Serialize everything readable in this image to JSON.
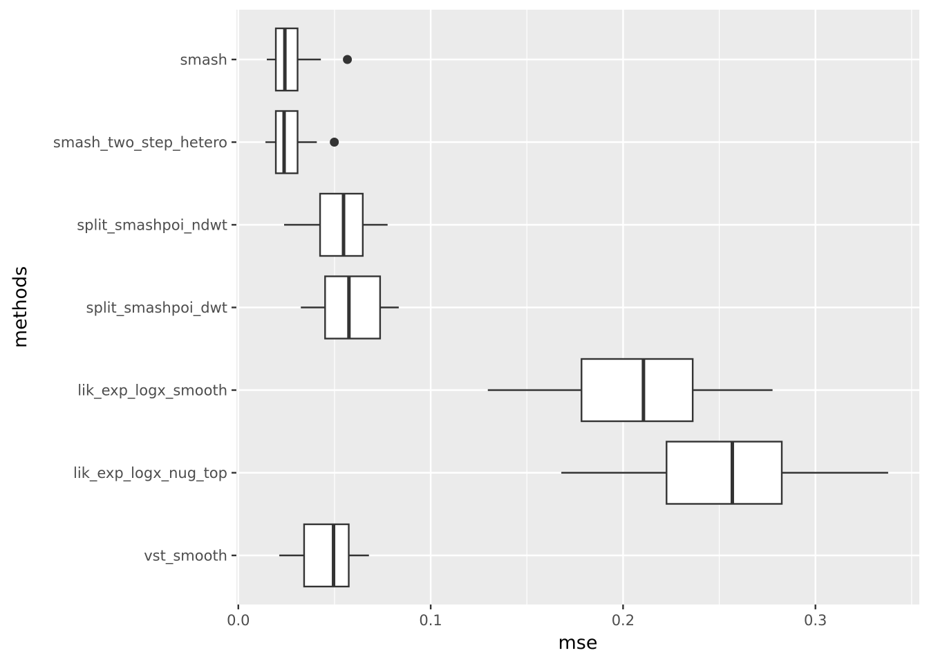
{
  "chart_data": {
    "type": "boxplot",
    "orientation": "horizontal",
    "xlabel": "mse",
    "ylabel": "methods",
    "xlim": [
      -0.001,
      0.354
    ],
    "x_ticks": [
      0.0,
      0.1,
      0.2,
      0.3
    ],
    "x_tick_labels": [
      "0.0",
      "0.1",
      "0.2",
      "0.3"
    ],
    "grid": true,
    "categories": [
      "smash",
      "smash_two_step_hetero",
      "split_smashpoi_ndwt",
      "split_smashpoi_dwt",
      "lik_exp_logx_smooth",
      "lik_exp_logx_nug_top",
      "vst_smooth"
    ],
    "boxes": [
      {
        "name": "smash",
        "whisker_low": 0.0148,
        "q1": 0.0195,
        "median": 0.0242,
        "q3": 0.0308,
        "whisker_high": 0.0429,
        "outliers": [
          0.0567
        ]
      },
      {
        "name": "smash_two_step_hetero",
        "whisker_low": 0.0141,
        "q1": 0.0195,
        "median": 0.0238,
        "q3": 0.0308,
        "whisker_high": 0.0408,
        "outliers": [
          0.0499
        ]
      },
      {
        "name": "split_smashpoi_ndwt",
        "whisker_low": 0.0238,
        "q1": 0.0425,
        "median": 0.0547,
        "q3": 0.0647,
        "whisker_high": 0.0776,
        "outliers": []
      },
      {
        "name": "split_smashpoi_dwt",
        "whisker_low": 0.0325,
        "q1": 0.0451,
        "median": 0.0575,
        "q3": 0.0737,
        "whisker_high": 0.0834,
        "outliers": []
      },
      {
        "name": "lik_exp_logx_smooth",
        "whisker_low": 0.1297,
        "q1": 0.1784,
        "median": 0.2106,
        "q3": 0.2362,
        "whisker_high": 0.2777,
        "outliers": []
      },
      {
        "name": "lik_exp_logx_nug_top",
        "whisker_low": 0.1679,
        "q1": 0.2226,
        "median": 0.2568,
        "q3": 0.2825,
        "whisker_high": 0.3378,
        "outliers": []
      },
      {
        "name": "vst_smooth",
        "whisker_low": 0.0213,
        "q1": 0.0342,
        "median": 0.0495,
        "q3": 0.0574,
        "whisker_high": 0.0679,
        "outliers": []
      }
    ],
    "colors": {
      "panel_background": "#ebebeb",
      "grid": "#ffffff",
      "box_fill": "#ffffff",
      "box_stroke": "#333333",
      "tick": "#333333"
    }
  }
}
